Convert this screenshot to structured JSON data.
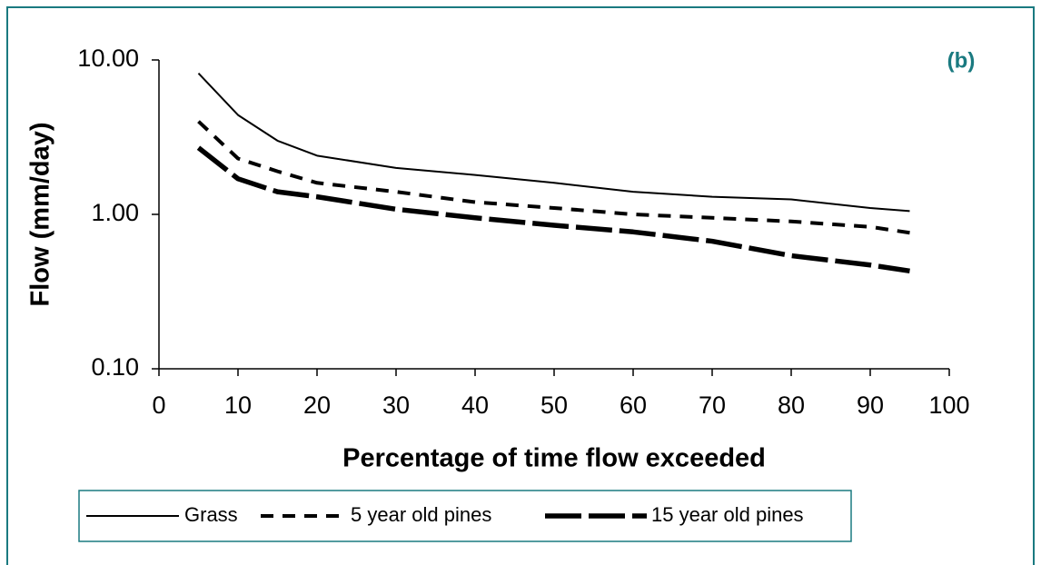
{
  "chart_data": {
    "type": "line",
    "annotation": "(b)",
    "x_label": "Percentage of time flow exceeded",
    "y_label": "Flow (mm/day)",
    "x": [
      5,
      10,
      15,
      20,
      30,
      40,
      50,
      60,
      70,
      80,
      90,
      95
    ],
    "series": [
      {
        "name": "Grass",
        "color": "#000000",
        "style": "solid",
        "values": [
          8.2,
          4.4,
          3.0,
          2.4,
          2.0,
          1.8,
          1.6,
          1.4,
          1.3,
          1.25,
          1.1,
          1.05
        ]
      },
      {
        "name": "5 year old pines",
        "color": "#000000",
        "style": "dashed",
        "values": [
          4.0,
          2.3,
          1.9,
          1.6,
          1.4,
          1.2,
          1.1,
          1.0,
          0.95,
          0.9,
          0.83,
          0.76
        ]
      },
      {
        "name": "15 year old pines",
        "color": "#000000",
        "style": "long-dashed",
        "values": [
          2.7,
          1.7,
          1.4,
          1.3,
          1.08,
          0.95,
          0.85,
          0.77,
          0.67,
          0.54,
          0.47,
          0.43
        ]
      }
    ],
    "xlim": [
      0,
      100
    ],
    "xticks": [
      0,
      10,
      20,
      30,
      40,
      50,
      60,
      70,
      80,
      90,
      100
    ],
    "ylim": [
      0.1,
      10
    ],
    "yticks": [
      {
        "value": 0.1,
        "label": "0.10"
      },
      {
        "value": 1,
        "label": "1.00"
      },
      {
        "value": 10,
        "label": "10.00"
      }
    ],
    "ylog": true,
    "legend": "bottom",
    "frame_color": "#1a7a80"
  }
}
